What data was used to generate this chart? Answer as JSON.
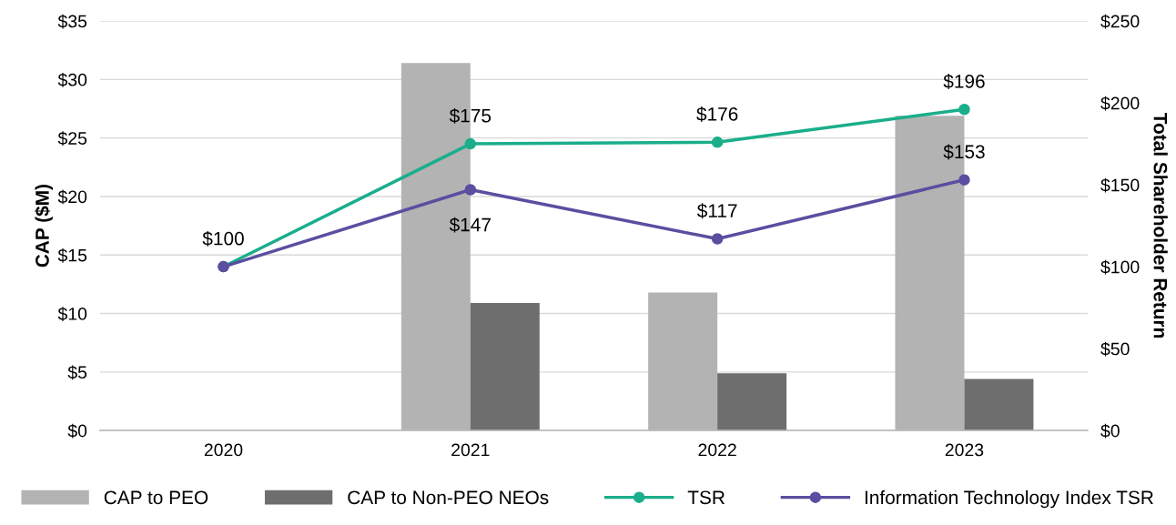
{
  "chart_data": {
    "type": "bar",
    "ylabel": "CAP ($M)",
    "y2label": "Total Shareholder Return",
    "categories": [
      "2020",
      "2021",
      "2022",
      "2023"
    ],
    "series": [
      {
        "name": "CAP to PEO",
        "color": "#b3b3b3",
        "values": [
          null,
          31.4,
          11.8,
          26.9
        ]
      },
      {
        "name": "CAP to Non-PEO NEOs",
        "color": "#6e6e6e",
        "values": [
          null,
          10.9,
          4.9,
          4.4
        ]
      },
      {
        "name": "TSR",
        "type": "line",
        "axis": "y2",
        "color": "#1aae8a",
        "values": [
          100,
          175,
          176,
          196
        ],
        "value_labels": [
          "$100",
          "$175",
          "$176",
          "$196"
        ]
      },
      {
        "name": "Information Technology Index TSR",
        "type": "line",
        "axis": "y2",
        "color": "#5b4ea0",
        "values": [
          100,
          147,
          117,
          153
        ],
        "value_labels": [
          null,
          "$147",
          "$117",
          "$153"
        ]
      }
    ],
    "ylim": [
      0,
      35
    ],
    "yticks": [
      {
        "value": 0,
        "label": "$0"
      },
      {
        "value": 5,
        "label": "$5"
      },
      {
        "value": 10,
        "label": "$10"
      },
      {
        "value": 15,
        "label": "$15"
      },
      {
        "value": 20,
        "label": "$20"
      },
      {
        "value": 25,
        "label": "$25"
      },
      {
        "value": 30,
        "label": "$30"
      },
      {
        "value": 35,
        "label": "$35"
      }
    ],
    "y2lim": [
      0,
      250
    ],
    "y2ticks": [
      {
        "value": 0,
        "label": "$0"
      },
      {
        "value": 50,
        "label": "$50"
      },
      {
        "value": 100,
        "label": "$100"
      },
      {
        "value": 150,
        "label": "$150"
      },
      {
        "value": 200,
        "label": "$200"
      },
      {
        "value": 250,
        "label": "$250"
      }
    ],
    "grid": "y",
    "legend": "bottom",
    "marker": "circle",
    "line_style": "solid"
  }
}
